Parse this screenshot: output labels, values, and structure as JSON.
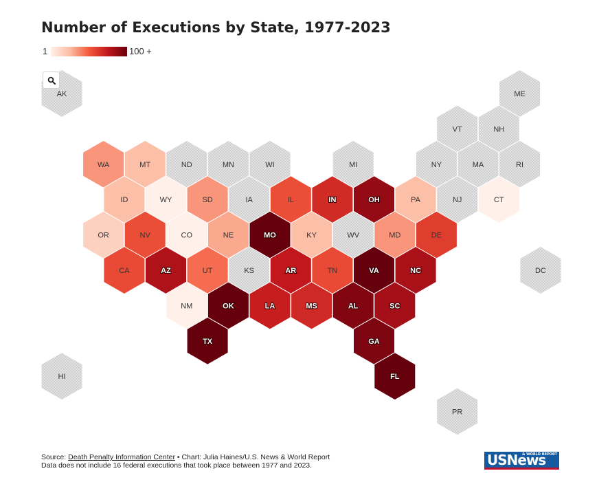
{
  "title": "Number of Executions by State, 1977-2023",
  "legend": {
    "min_label": "1",
    "max_label": "100 +"
  },
  "zoom": {
    "icon": "search-icon"
  },
  "colors": {
    "nodata": "#e0e0e0",
    "scale": [
      "#fff0ea",
      "#fcbda4",
      "#f3593c",
      "#c1161c",
      "#67000d"
    ],
    "label_light": "#ffffff",
    "label_dark": "#333333"
  },
  "chart_data": {
    "type": "hex-tile-map",
    "value_scale": {
      "min": 1,
      "max": 100,
      "unit": "executions"
    },
    "states": [
      {
        "abbr": "AK",
        "row": 0,
        "col": 0,
        "value": 0
      },
      {
        "abbr": "ME",
        "row": 0,
        "col": 11,
        "value": 0
      },
      {
        "abbr": "VT",
        "row": 1,
        "col": 9.5,
        "value": 0
      },
      {
        "abbr": "NH",
        "row": 1,
        "col": 10.5,
        "value": 0
      },
      {
        "abbr": "WA",
        "row": 2,
        "col": 1,
        "value": 5
      },
      {
        "abbr": "MT",
        "row": 2,
        "col": 2,
        "value": 3
      },
      {
        "abbr": "ND",
        "row": 2,
        "col": 3,
        "value": 0
      },
      {
        "abbr": "MN",
        "row": 2,
        "col": 4,
        "value": 0
      },
      {
        "abbr": "WI",
        "row": 2,
        "col": 5,
        "value": 0
      },
      {
        "abbr": "MI",
        "row": 2,
        "col": 7,
        "value": 0
      },
      {
        "abbr": "NY",
        "row": 2,
        "col": 9,
        "value": 0
      },
      {
        "abbr": "MA",
        "row": 2,
        "col": 10,
        "value": 0
      },
      {
        "abbr": "RI",
        "row": 2,
        "col": 11,
        "value": 0
      },
      {
        "abbr": "ID",
        "row": 3,
        "col": 1.5,
        "value": 3
      },
      {
        "abbr": "WY",
        "row": 3,
        "col": 2.5,
        "value": 1
      },
      {
        "abbr": "SD",
        "row": 3,
        "col": 3.5,
        "value": 5
      },
      {
        "abbr": "IA",
        "row": 3,
        "col": 4.5,
        "value": 0
      },
      {
        "abbr": "IL",
        "row": 3,
        "col": 5.5,
        "value": 12
      },
      {
        "abbr": "IN",
        "row": 3,
        "col": 6.5,
        "value": 22
      },
      {
        "abbr": "OH",
        "row": 3,
        "col": 7.5,
        "value": 56
      },
      {
        "abbr": "PA",
        "row": 3,
        "col": 8.5,
        "value": 3
      },
      {
        "abbr": "NJ",
        "row": 3,
        "col": 9.5,
        "value": 0
      },
      {
        "abbr": "CT",
        "row": 3,
        "col": 10.5,
        "value": 1
      },
      {
        "abbr": "OR",
        "row": 4,
        "col": 1,
        "value": 2
      },
      {
        "abbr": "NV",
        "row": 4,
        "col": 2,
        "value": 12
      },
      {
        "abbr": "CO",
        "row": 4,
        "col": 3,
        "value": 1
      },
      {
        "abbr": "NE",
        "row": 4,
        "col": 4,
        "value": 4
      },
      {
        "abbr": "MO",
        "row": 4,
        "col": 5,
        "value": 100
      },
      {
        "abbr": "KY",
        "row": 4,
        "col": 6,
        "value": 3
      },
      {
        "abbr": "WV",
        "row": 4,
        "col": 7,
        "value": 0
      },
      {
        "abbr": "MD",
        "row": 4,
        "col": 8,
        "value": 5
      },
      {
        "abbr": "DE",
        "row": 4,
        "col": 9,
        "value": 16
      },
      {
        "abbr": "CA",
        "row": 5,
        "col": 1.5,
        "value": 13
      },
      {
        "abbr": "AZ",
        "row": 5,
        "col": 2.5,
        "value": 40
      },
      {
        "abbr": "UT",
        "row": 5,
        "col": 3.5,
        "value": 8
      },
      {
        "abbr": "KS",
        "row": 5,
        "col": 4.5,
        "value": 0
      },
      {
        "abbr": "AR",
        "row": 5,
        "col": 5.5,
        "value": 31
      },
      {
        "abbr": "TN",
        "row": 5,
        "col": 6.5,
        "value": 13
      },
      {
        "abbr": "VA",
        "row": 5,
        "col": 7.5,
        "value": 113
      },
      {
        "abbr": "NC",
        "row": 5,
        "col": 8.5,
        "value": 43
      },
      {
        "abbr": "DC",
        "row": 5,
        "col": 11.5,
        "value": 0
      },
      {
        "abbr": "NM",
        "row": 6,
        "col": 3,
        "value": 1
      },
      {
        "abbr": "OK",
        "row": 6,
        "col": 4,
        "value": 125
      },
      {
        "abbr": "LA",
        "row": 6,
        "col": 5,
        "value": 28
      },
      {
        "abbr": "MS",
        "row": 6,
        "col": 6,
        "value": 23
      },
      {
        "abbr": "AL",
        "row": 6,
        "col": 7,
        "value": 72
      },
      {
        "abbr": "SC",
        "row": 6,
        "col": 8,
        "value": 45
      },
      {
        "abbr": "TX",
        "row": 7,
        "col": 3.5,
        "value": 587
      },
      {
        "abbr": "GA",
        "row": 7,
        "col": 7.5,
        "value": 76
      },
      {
        "abbr": "HI",
        "row": 8,
        "col": 0,
        "value": 0
      },
      {
        "abbr": "FL",
        "row": 8,
        "col": 8,
        "value": 105
      },
      {
        "abbr": "PR",
        "row": 9,
        "col": 9.5,
        "value": 0
      }
    ]
  },
  "footer": {
    "source_prefix": "Source: ",
    "source_link": "Death Penalty Information Center",
    "credit": " • Chart: Julia Haines/U.S. News & World Report",
    "note": "Data does not include 16 federal executions that took place between 1977 and 2023."
  },
  "logo": {
    "main": "USNews",
    "sub": "& WORLD REPORT"
  }
}
